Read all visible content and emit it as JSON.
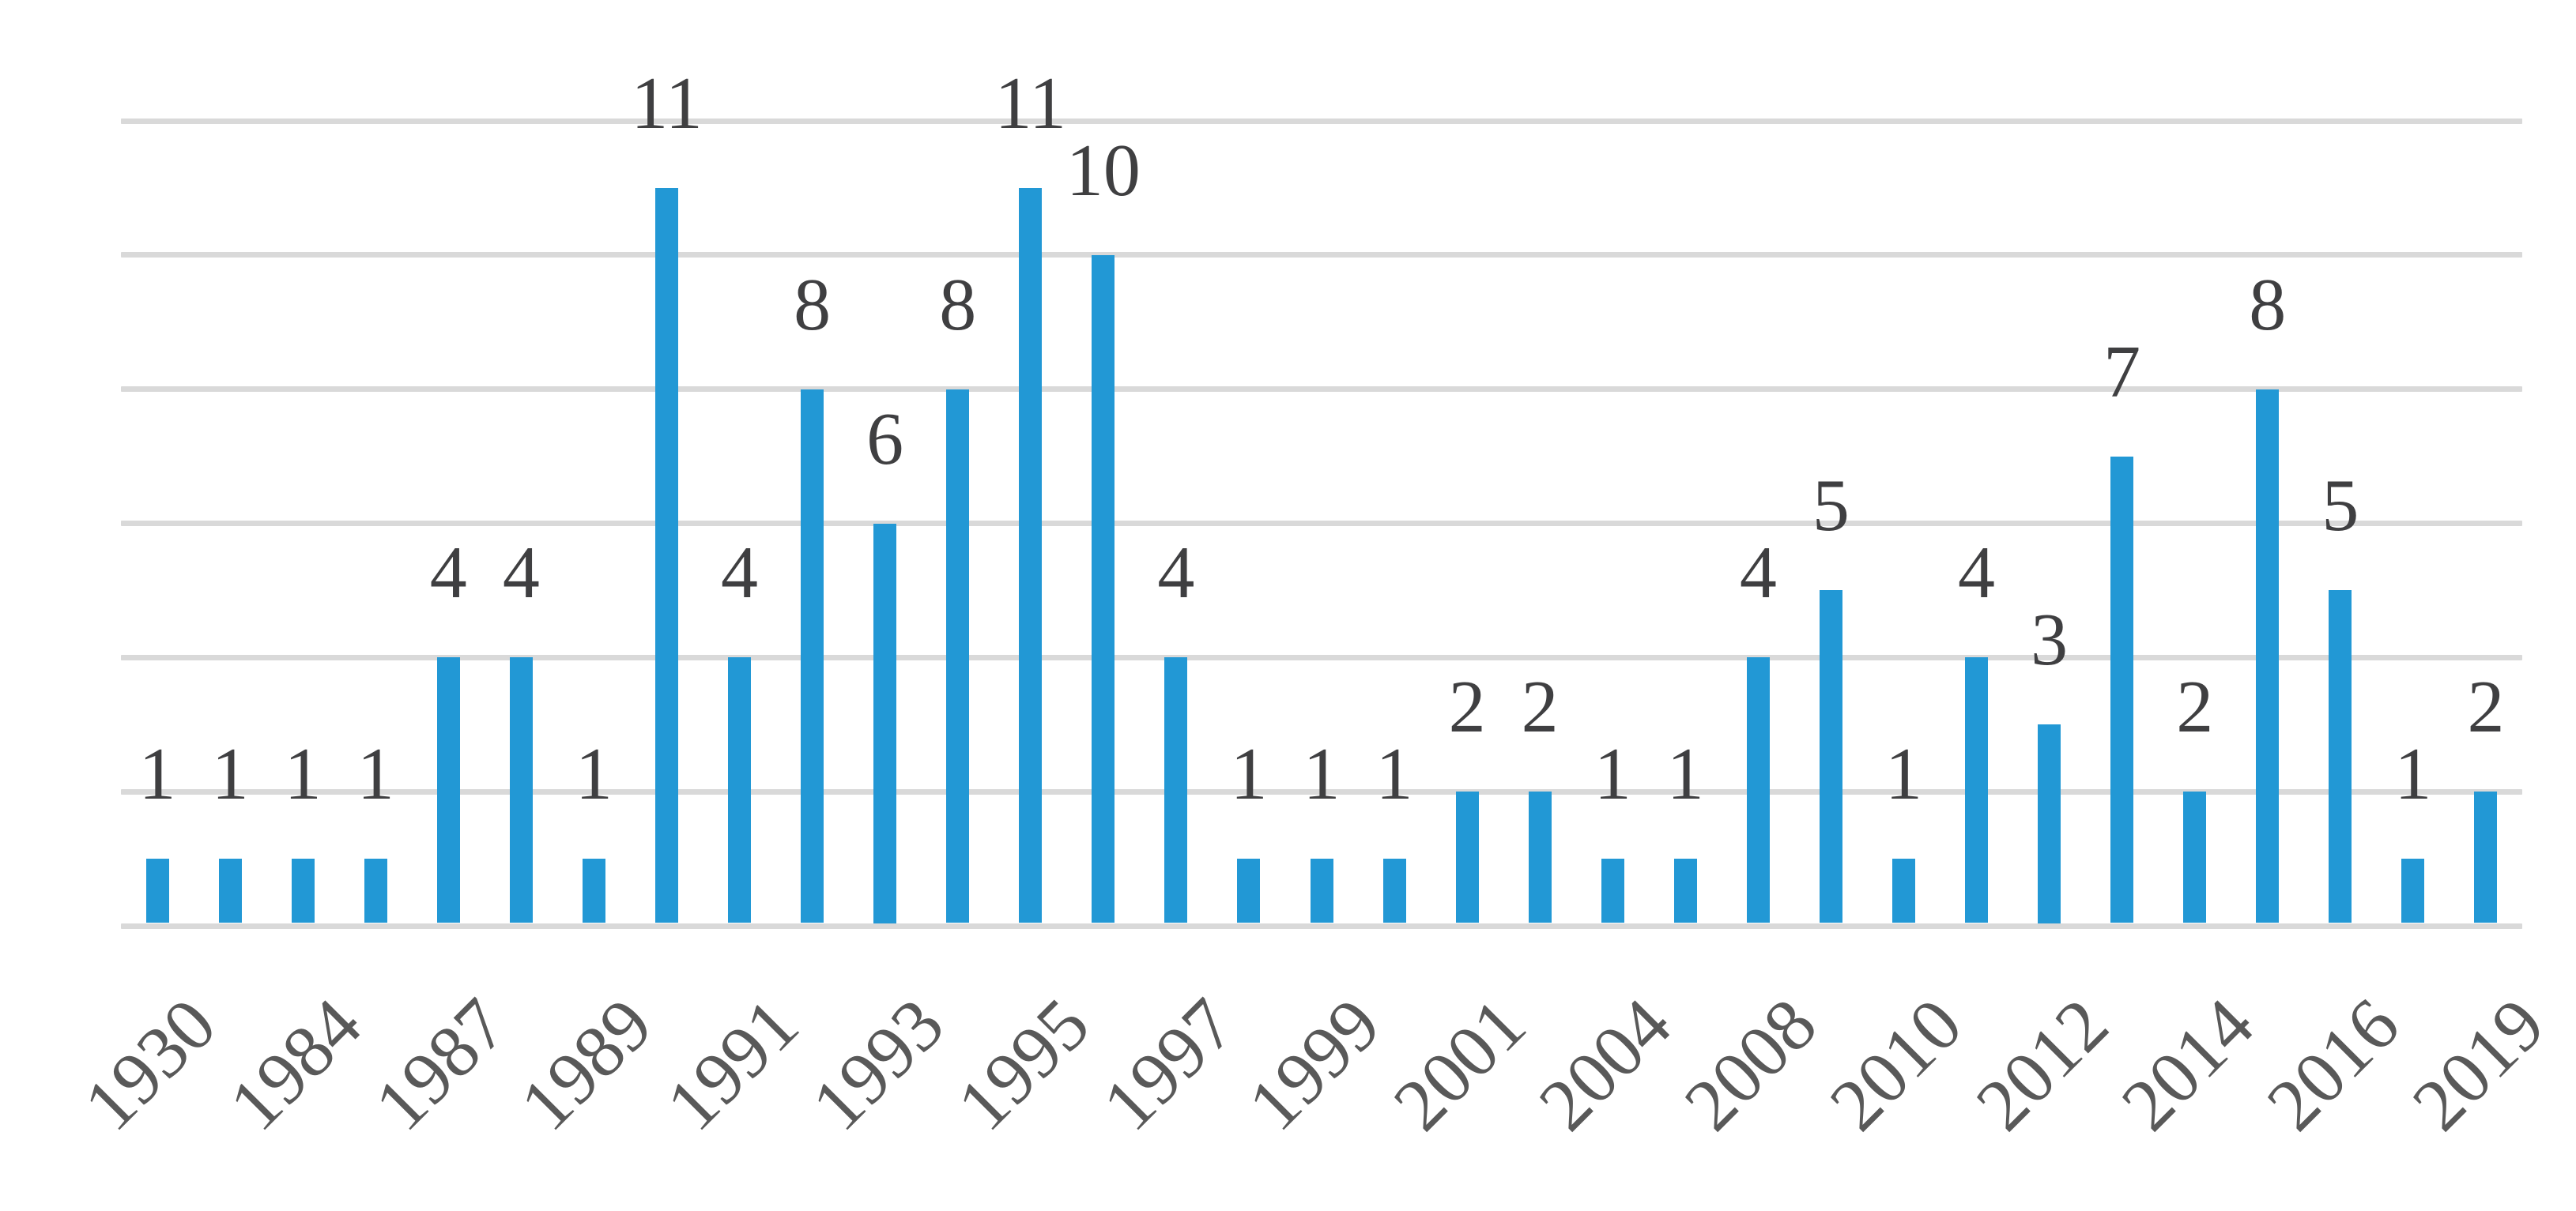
{
  "chart_data": {
    "type": "bar",
    "title": "",
    "categories": [
      "1930",
      "",
      "1984",
      "",
      "1987",
      "",
      "1989",
      "",
      "1991",
      "",
      "1993",
      "",
      "1995",
      "",
      "1997",
      "",
      "1999",
      "",
      "2001",
      "",
      "2004",
      "",
      "2008",
      "",
      "2010",
      "",
      "2012",
      "",
      "2014",
      "",
      "2016",
      "",
      "2019"
    ],
    "values": [
      1,
      1,
      1,
      1,
      4,
      4,
      1,
      11,
      4,
      8,
      6,
      8,
      11,
      10,
      4,
      1,
      1,
      1,
      2,
      2,
      1,
      1,
      4,
      5,
      1,
      4,
      3,
      7,
      2,
      8,
      5,
      1,
      2
    ],
    "x_tick_labels_visible": [
      "1930",
      "1984",
      "1987",
      "1989",
      "1991",
      "1993",
      "1995",
      "1997",
      "1999",
      "2001",
      "2004",
      "2008",
      "2010",
      "2012",
      "2014",
      "2016",
      "2019"
    ],
    "data_labels": [
      1,
      1,
      1,
      1,
      4,
      4,
      1,
      11,
      4,
      8,
      6,
      8,
      11,
      10,
      4,
      1,
      1,
      1,
      2,
      2,
      1,
      1,
      4,
      5,
      1,
      4,
      3,
      7,
      2,
      8,
      5,
      1,
      2
    ],
    "xlabel": "",
    "ylabel": "",
    "ylim": [
      0,
      12
    ],
    "gridline_step": 2,
    "grid": true,
    "y_axis_tick_labels_visible": false,
    "legend": false,
    "x_label_rotation_deg": -45,
    "colors": {
      "bar": "#2298d5",
      "gridline": "#d9d9d9",
      "data_label": "#3f3f41",
      "tick_label": "#595959",
      "background": "#ffffff"
    }
  }
}
